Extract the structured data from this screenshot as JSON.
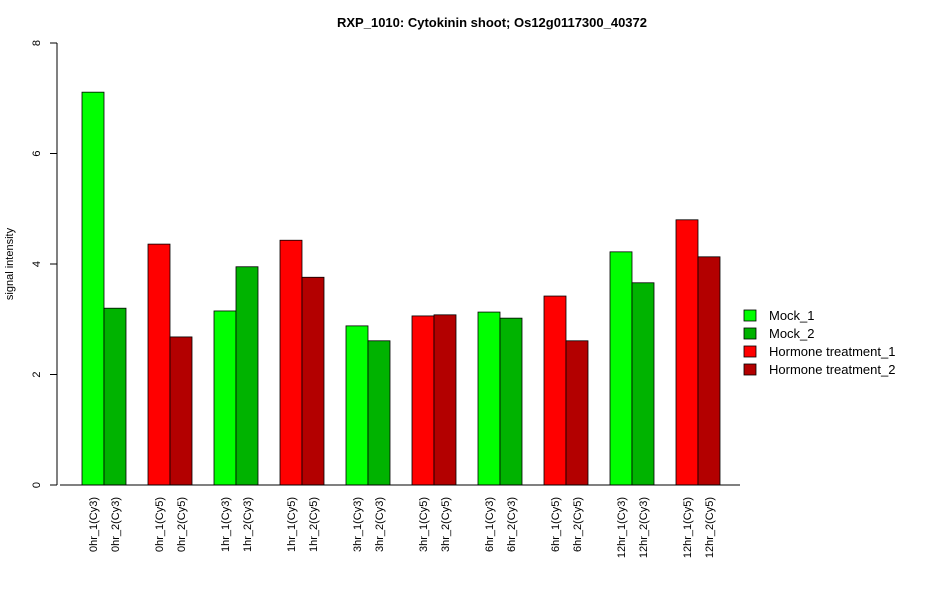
{
  "chart_data": {
    "type": "bar",
    "title": "RXP_1010: Cytokinin shoot; Os12g0117300_40372",
    "xlabel": "",
    "ylabel": "signal intensity",
    "ylim": [
      0,
      8
    ],
    "yticks": [
      0,
      2,
      4,
      6,
      8
    ],
    "grid": false,
    "legend_position": "right",
    "categories": [
      "0hr_1(Cy3)",
      "0hr_2(Cy3)",
      "0hr_1(Cy5)",
      "0hr_2(Cy5)",
      "1hr_1(Cy3)",
      "1hr_2(Cy3)",
      "1hr_1(Cy5)",
      "1hr_2(Cy5)",
      "3hr_1(Cy3)",
      "3hr_2(Cy3)",
      "3hr_1(Cy5)",
      "3hr_2(Cy5)",
      "6hr_1(Cy3)",
      "6hr_2(Cy3)",
      "6hr_1(Cy5)",
      "6hr_2(Cy5)",
      "12hr_1(Cy3)",
      "12hr_2(Cy3)",
      "12hr_1(Cy5)",
      "12hr_2(Cy5)"
    ],
    "values": [
      7.11,
      3.2,
      4.36,
      2.68,
      3.15,
      3.95,
      4.43,
      3.76,
      2.88,
      2.61,
      3.06,
      3.08,
      3.13,
      3.02,
      3.42,
      2.61,
      4.22,
      3.66,
      4.8,
      4.13
    ],
    "bar_series": [
      0,
      1,
      2,
      3,
      0,
      1,
      2,
      3,
      0,
      1,
      2,
      3,
      0,
      1,
      2,
      3,
      0,
      1,
      2,
      3
    ],
    "series": [
      {
        "name": "Mock_1",
        "color": "#00ff00"
      },
      {
        "name": "Mock_2",
        "color": "#00b300"
      },
      {
        "name": "Hormone treatment_1",
        "color": "#ff0000"
      },
      {
        "name": "Hormone treatment_2",
        "color": "#b30000"
      }
    ]
  }
}
